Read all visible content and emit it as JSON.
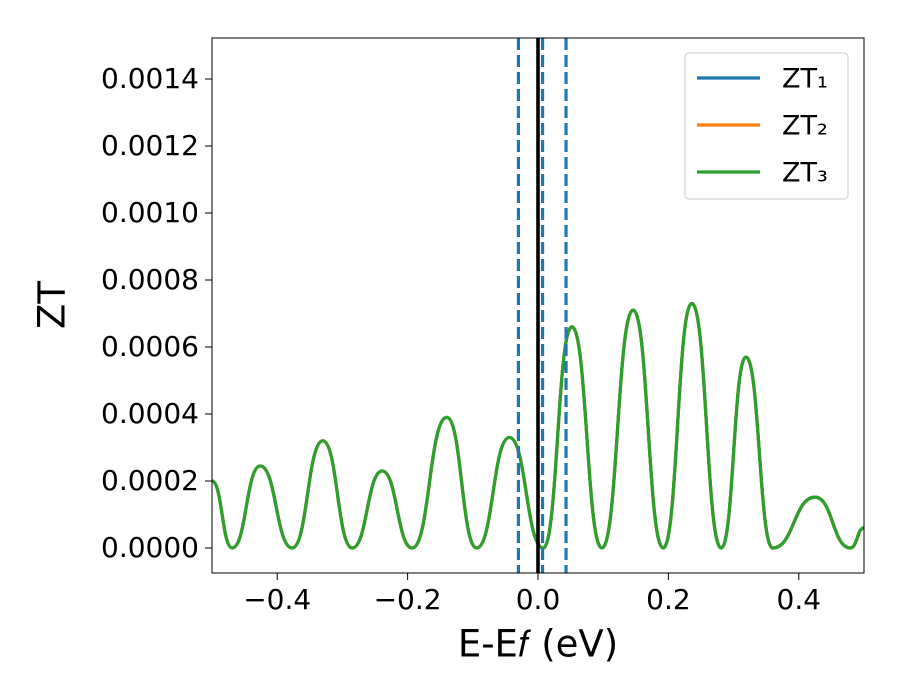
{
  "chart_data": {
    "type": "line",
    "xlabel": "E-E𝑓 (eV)",
    "ylabel": "ZT",
    "x": [
      -0.5,
      -0.469,
      -0.426,
      -0.377,
      -0.33,
      -0.285,
      -0.239,
      -0.193,
      -0.14,
      -0.094,
      -0.044,
      0.008,
      0.052,
      0.098,
      0.146,
      0.192,
      0.236,
      0.281,
      0.319,
      0.36,
      0.425,
      0.479,
      0.5
    ],
    "series": [
      {
        "name": "ZT₁",
        "color": "#1f77b4",
        "values": [
          0.0002,
          0,
          0.000245,
          0,
          0.00032,
          0,
          0.00023,
          0,
          0.00039,
          0,
          0.00033,
          0,
          0.00066,
          0,
          0.00071,
          0,
          0.00073,
          0,
          0.00057,
          0,
          0.000152,
          0,
          6e-05
        ]
      },
      {
        "name": "ZT₂",
        "color": "#ff7f0e",
        "values": [
          0.0002,
          0,
          0.000245,
          0,
          0.00032,
          0,
          0.00023,
          0,
          0.00039,
          0,
          0.00033,
          0,
          0.00066,
          0,
          0.00071,
          0,
          0.00073,
          0,
          0.00057,
          0,
          0.000152,
          0,
          6e-05
        ]
      },
      {
        "name": "ZT₃",
        "color": "#2ca02c",
        "values": [
          0.0002,
          0,
          0.000245,
          0,
          0.00032,
          0,
          0.00023,
          0,
          0.00039,
          0,
          0.00033,
          0,
          0.00066,
          0,
          0.00071,
          0,
          0.00073,
          0,
          0.00057,
          0,
          0.000152,
          0,
          6e-05
        ]
      }
    ],
    "vlines": [
      {
        "x": -0.03,
        "color": "#1f77b4",
        "dashed": true
      },
      {
        "x": 0.007,
        "color": "#1f77b4",
        "dashed": true
      },
      {
        "x": 0.043,
        "color": "#1f77b4",
        "dashed": true
      },
      {
        "x": 0,
        "color": "#000000",
        "dashed": false
      }
    ],
    "xlim": [
      -0.5,
      0.5
    ],
    "ylim": [
      -7.46e-05,
      0.0015224
    ],
    "xticks": [
      {
        "value": -0.4,
        "label": "−0.4"
      },
      {
        "value": -0.2,
        "label": "−0.2"
      },
      {
        "value": 0,
        "label": "0.0"
      },
      0.2,
      0.4
    ],
    "yticks": [
      {
        "value": 0,
        "label": "0.0000"
      },
      {
        "value": 0.0002,
        "label": "0.0002"
      },
      {
        "value": 0.0004,
        "label": "0.0004"
      },
      {
        "value": 0.0006,
        "label": "0.0006"
      },
      {
        "value": 0.0008,
        "label": "0.0008"
      },
      {
        "value": 0.001,
        "label": "0.0010"
      },
      {
        "value": 0.0012,
        "label": "0.0012"
      },
      {
        "value": 0.0014,
        "label": "0.0014"
      }
    ],
    "grid": false,
    "legend": "upper right"
  }
}
